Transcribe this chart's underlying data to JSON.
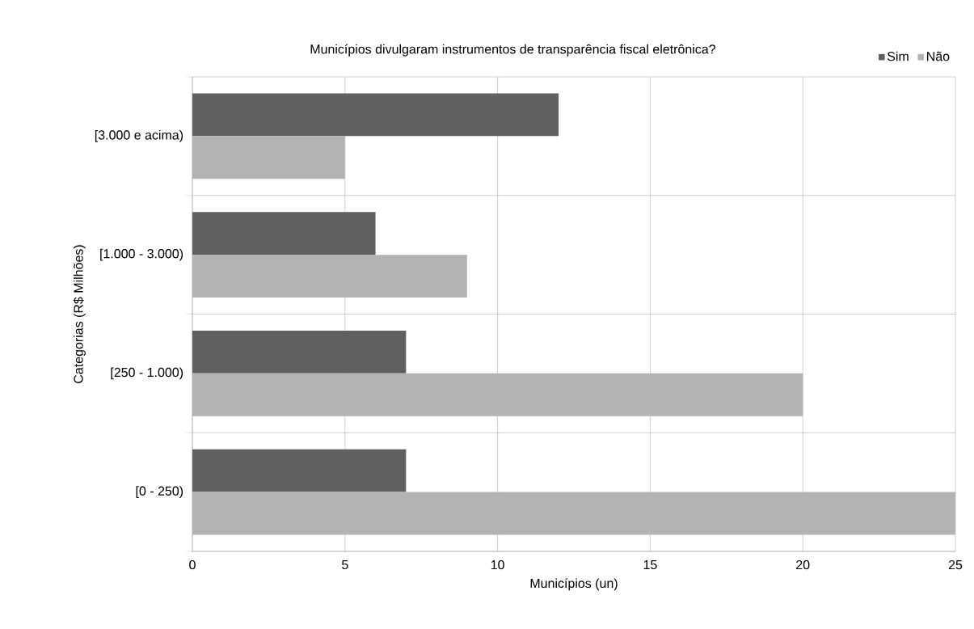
{
  "chart_data": {
    "type": "bar",
    "orientation": "horizontal",
    "title": "Municípios divulgaram instrumentos de transparência fiscal eletrônica?",
    "xlabel": "Municípios (un)",
    "ylabel": "Categorias    (R$ Milhões)",
    "categories": [
      "[3.000 e acima)",
      "[1.000 - 3.000)",
      "[250 - 1.000)",
      "[0 - 250)"
    ],
    "series": [
      {
        "name": "Sim",
        "color": "#606060",
        "values": [
          12,
          6,
          7,
          7
        ]
      },
      {
        "name": "Não",
        "color": "#b3b3b3",
        "values": [
          5,
          9,
          20,
          25
        ]
      }
    ],
    "xlim": [
      0,
      25
    ],
    "xticks": [
      0,
      5,
      10,
      15,
      20,
      25
    ],
    "grid": true,
    "legend": "top right"
  }
}
